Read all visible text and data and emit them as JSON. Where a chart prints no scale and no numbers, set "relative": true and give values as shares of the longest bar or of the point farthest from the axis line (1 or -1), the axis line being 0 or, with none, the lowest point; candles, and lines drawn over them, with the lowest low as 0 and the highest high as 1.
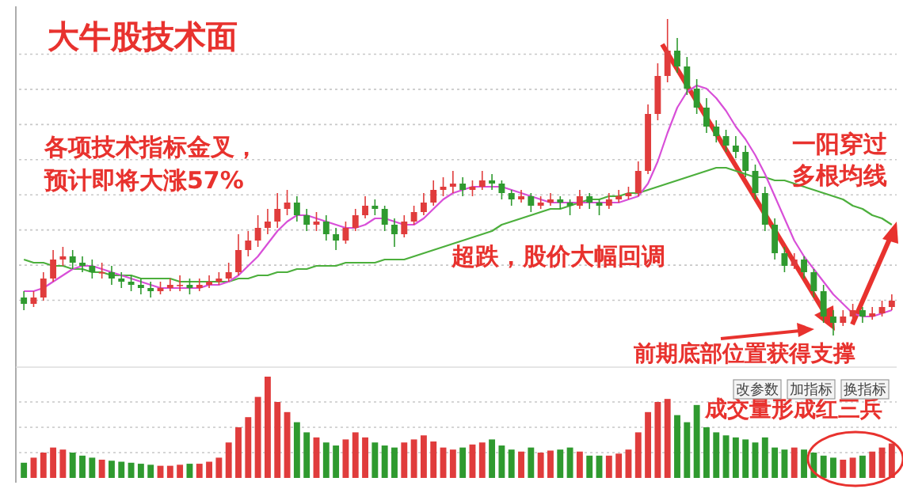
{
  "chart_data": [
    {
      "type": "candlestick",
      "title": "大牛股技术面",
      "relative": true,
      "grid": true,
      "categories": [
        null,
        null,
        null,
        null,
        null,
        null,
        null,
        null,
        null,
        null,
        null,
        null,
        null,
        null,
        null,
        null,
        null,
        null,
        null,
        null,
        null,
        null,
        null,
        null,
        null,
        null,
        null,
        null,
        null,
        null,
        null,
        null,
        null,
        null,
        null,
        null,
        null,
        null,
        null,
        null,
        null,
        null,
        null,
        null,
        null,
        null,
        null,
        null,
        null,
        null,
        null,
        null,
        null,
        null,
        null,
        null,
        null,
        null,
        null,
        null,
        null,
        null,
        null,
        null,
        null,
        null,
        null,
        null,
        null,
        null,
        null,
        null,
        null,
        null,
        null,
        null,
        null,
        null,
        null,
        null,
        null,
        null,
        null,
        null,
        null,
        null,
        null,
        null,
        null,
        null
      ],
      "ohlc": [
        [
          0.12,
          0.14,
          0.08,
          0.1
        ],
        [
          0.1,
          0.14,
          0.09,
          0.12
        ],
        [
          0.12,
          0.2,
          0.11,
          0.18
        ],
        [
          0.18,
          0.27,
          0.17,
          0.24
        ],
        [
          0.24,
          0.28,
          0.22,
          0.25
        ],
        [
          0.25,
          0.27,
          0.21,
          0.23
        ],
        [
          0.23,
          0.25,
          0.2,
          0.22
        ],
        [
          0.22,
          0.24,
          0.18,
          0.2
        ],
        [
          0.2,
          0.23,
          0.18,
          0.2
        ],
        [
          0.2,
          0.22,
          0.16,
          0.18
        ],
        [
          0.18,
          0.2,
          0.15,
          0.17
        ],
        [
          0.17,
          0.19,
          0.14,
          0.16
        ],
        [
          0.16,
          0.18,
          0.13,
          0.15
        ],
        [
          0.15,
          0.17,
          0.12,
          0.14
        ],
        [
          0.14,
          0.17,
          0.13,
          0.15
        ],
        [
          0.15,
          0.18,
          0.14,
          0.16
        ],
        [
          0.16,
          0.19,
          0.14,
          0.16
        ],
        [
          0.16,
          0.18,
          0.13,
          0.15
        ],
        [
          0.15,
          0.18,
          0.14,
          0.16
        ],
        [
          0.16,
          0.19,
          0.15,
          0.17
        ],
        [
          0.17,
          0.2,
          0.16,
          0.18
        ],
        [
          0.18,
          0.23,
          0.17,
          0.2
        ],
        [
          0.2,
          0.32,
          0.19,
          0.27
        ],
        [
          0.27,
          0.33,
          0.25,
          0.3
        ],
        [
          0.3,
          0.38,
          0.28,
          0.34
        ],
        [
          0.34,
          0.4,
          0.32,
          0.36
        ],
        [
          0.36,
          0.45,
          0.34,
          0.4
        ],
        [
          0.4,
          0.46,
          0.38,
          0.42
        ],
        [
          0.42,
          0.44,
          0.36,
          0.38
        ],
        [
          0.38,
          0.4,
          0.33,
          0.35
        ],
        [
          0.35,
          0.39,
          0.33,
          0.36
        ],
        [
          0.36,
          0.38,
          0.3,
          0.32
        ],
        [
          0.32,
          0.34,
          0.27,
          0.3
        ],
        [
          0.3,
          0.36,
          0.29,
          0.34
        ],
        [
          0.34,
          0.4,
          0.33,
          0.38
        ],
        [
          0.38,
          0.44,
          0.37,
          0.41
        ],
        [
          0.41,
          0.43,
          0.38,
          0.4
        ],
        [
          0.4,
          0.41,
          0.33,
          0.35
        ],
        [
          0.35,
          0.37,
          0.28,
          0.32
        ],
        [
          0.32,
          0.38,
          0.31,
          0.36
        ],
        [
          0.36,
          0.41,
          0.35,
          0.39
        ],
        [
          0.39,
          0.45,
          0.38,
          0.42
        ],
        [
          0.42,
          0.49,
          0.41,
          0.46
        ],
        [
          0.46,
          0.5,
          0.44,
          0.47
        ],
        [
          0.47,
          0.52,
          0.45,
          0.48
        ],
        [
          0.48,
          0.5,
          0.44,
          0.46
        ],
        [
          0.46,
          0.49,
          0.44,
          0.47
        ],
        [
          0.47,
          0.52,
          0.46,
          0.49
        ],
        [
          0.49,
          0.51,
          0.46,
          0.48
        ],
        [
          0.48,
          0.49,
          0.43,
          0.45
        ],
        [
          0.45,
          0.46,
          0.41,
          0.43
        ],
        [
          0.43,
          0.46,
          0.42,
          0.44
        ],
        [
          0.44,
          0.45,
          0.39,
          0.41
        ],
        [
          0.41,
          0.44,
          0.4,
          0.42
        ],
        [
          0.42,
          0.45,
          0.41,
          0.43
        ],
        [
          0.43,
          0.44,
          0.4,
          0.42
        ],
        [
          0.42,
          0.43,
          0.38,
          0.41
        ],
        [
          0.41,
          0.46,
          0.4,
          0.44
        ],
        [
          0.44,
          0.45,
          0.4,
          0.42
        ],
        [
          0.42,
          0.43,
          0.38,
          0.41
        ],
        [
          0.41,
          0.45,
          0.4,
          0.43
        ],
        [
          0.43,
          0.46,
          0.42,
          0.44
        ],
        [
          0.44,
          0.47,
          0.43,
          0.45
        ],
        [
          0.45,
          0.55,
          0.44,
          0.52
        ],
        [
          0.52,
          0.73,
          0.51,
          0.7
        ],
        [
          0.7,
          0.86,
          0.68,
          0.82
        ],
        [
          0.82,
          1.0,
          0.8,
          0.9
        ],
        [
          0.9,
          0.94,
          0.83,
          0.85
        ],
        [
          0.85,
          0.88,
          0.76,
          0.78
        ],
        [
          0.78,
          0.81,
          0.7,
          0.72
        ],
        [
          0.72,
          0.75,
          0.64,
          0.66
        ],
        [
          0.66,
          0.68,
          0.61,
          0.63
        ],
        [
          0.63,
          0.65,
          0.58,
          0.6
        ],
        [
          0.6,
          0.63,
          0.56,
          0.58
        ],
        [
          0.58,
          0.6,
          0.5,
          0.52
        ],
        [
          0.52,
          0.54,
          0.43,
          0.45
        ],
        [
          0.45,
          0.47,
          0.33,
          0.35
        ],
        [
          0.35,
          0.37,
          0.24,
          0.26
        ],
        [
          0.26,
          0.28,
          0.2,
          0.22
        ],
        [
          0.22,
          0.26,
          0.21,
          0.24
        ],
        [
          0.24,
          0.25,
          0.18,
          0.2
        ],
        [
          0.2,
          0.21,
          0.12,
          0.14
        ],
        [
          0.14,
          0.16,
          0.04,
          0.06
        ],
        [
          0.06,
          0.08,
          0.0,
          0.04
        ],
        [
          0.04,
          0.08,
          0.03,
          0.06
        ],
        [
          0.06,
          0.1,
          0.05,
          0.08
        ],
        [
          0.08,
          0.09,
          0.04,
          0.06
        ],
        [
          0.06,
          0.09,
          0.05,
          0.07
        ],
        [
          0.07,
          0.11,
          0.06,
          0.09
        ],
        [
          0.09,
          0.13,
          0.08,
          0.11
        ]
      ],
      "colors": [
        "#2f9a2f",
        "#e03c3c",
        "#e03c3c",
        "#e03c3c",
        "#e03c3c",
        "#2f9a2f",
        "#2f9a2f",
        "#2f9a2f",
        "#e03c3c",
        "#2f9a2f",
        "#2f9a2f",
        "#2f9a2f",
        "#2f9a2f",
        "#2f9a2f",
        "#e03c3c",
        "#e03c3c",
        "#e03c3c",
        "#2f9a2f",
        "#e03c3c",
        "#e03c3c",
        "#e03c3c",
        "#e03c3c",
        "#e03c3c",
        "#e03c3c",
        "#e03c3c",
        "#e03c3c",
        "#e03c3c",
        "#e03c3c",
        "#2f9a2f",
        "#2f9a2f",
        "#e03c3c",
        "#2f9a2f",
        "#2f9a2f",
        "#e03c3c",
        "#e03c3c",
        "#e03c3c",
        "#2f9a2f",
        "#2f9a2f",
        "#2f9a2f",
        "#e03c3c",
        "#e03c3c",
        "#e03c3c",
        "#e03c3c",
        "#e03c3c",
        "#e03c3c",
        "#2f9a2f",
        "#e03c3c",
        "#e03c3c",
        "#2f9a2f",
        "#2f9a2f",
        "#2f9a2f",
        "#e03c3c",
        "#2f9a2f",
        "#e03c3c",
        "#e03c3c",
        "#2f9a2f",
        "#2f9a2f",
        "#e03c3c",
        "#2f9a2f",
        "#2f9a2f",
        "#e03c3c",
        "#e03c3c",
        "#e03c3c",
        "#e03c3c",
        "#e03c3c",
        "#e03c3c",
        "#e03c3c",
        "#2f9a2f",
        "#2f9a2f",
        "#2f9a2f",
        "#2f9a2f",
        "#2f9a2f",
        "#2f9a2f",
        "#2f9a2f",
        "#2f9a2f",
        "#2f9a2f",
        "#2f9a2f",
        "#2f9a2f",
        "#2f9a2f",
        "#e03c3c",
        "#2f9a2f",
        "#2f9a2f",
        "#2f9a2f",
        "#2f9a2f",
        "#e03c3c",
        "#e03c3c",
        "#2f9a2f",
        "#e03c3c",
        "#e03c3c",
        "#e03c3c"
      ],
      "series": [
        {
          "type": "line",
          "color": "#4caf3c",
          "values": [
            0.24,
            0.23,
            0.23,
            0.22,
            0.22,
            0.21,
            0.21,
            0.2,
            0.2,
            0.19,
            0.19,
            0.19,
            0.18,
            0.18,
            0.18,
            0.18,
            0.17,
            0.17,
            0.17,
            0.17,
            0.17,
            0.17,
            0.18,
            0.18,
            0.19,
            0.19,
            0.2,
            0.2,
            0.21,
            0.21,
            0.22,
            0.22,
            0.22,
            0.23,
            0.23,
            0.23,
            0.23,
            0.24,
            0.24,
            0.24,
            0.25,
            0.26,
            0.27,
            0.28,
            0.29,
            0.3,
            0.31,
            0.32,
            0.33,
            0.35,
            0.36,
            0.37,
            0.38,
            0.39,
            0.4,
            0.4,
            0.41,
            0.42,
            0.43,
            0.43,
            0.44,
            0.44,
            0.45,
            0.45,
            0.46,
            0.47,
            0.48,
            0.49,
            0.5,
            0.51,
            0.52,
            0.53,
            0.53,
            0.52,
            0.51,
            0.5,
            0.5,
            0.49,
            0.49,
            0.48,
            0.47,
            0.46,
            0.45,
            0.44,
            0.43,
            0.41,
            0.4,
            0.38,
            0.37,
            0.35
          ]
        },
        {
          "type": "line",
          "color": "#d84fd8",
          "values": [
            0.14,
            0.14,
            0.15,
            0.17,
            0.19,
            0.21,
            0.22,
            0.22,
            0.21,
            0.2,
            0.19,
            0.18,
            0.17,
            0.16,
            0.15,
            0.15,
            0.15,
            0.15,
            0.15,
            0.16,
            0.16,
            0.17,
            0.19,
            0.22,
            0.25,
            0.29,
            0.33,
            0.36,
            0.38,
            0.38,
            0.37,
            0.36,
            0.35,
            0.34,
            0.34,
            0.35,
            0.37,
            0.37,
            0.36,
            0.35,
            0.35,
            0.37,
            0.4,
            0.43,
            0.45,
            0.46,
            0.47,
            0.47,
            0.47,
            0.47,
            0.46,
            0.45,
            0.44,
            0.43,
            0.42,
            0.42,
            0.42,
            0.42,
            0.42,
            0.42,
            0.42,
            0.42,
            0.43,
            0.44,
            0.48,
            0.55,
            0.64,
            0.72,
            0.77,
            0.79,
            0.78,
            0.75,
            0.71,
            0.66,
            0.62,
            0.57,
            0.51,
            0.44,
            0.37,
            0.3,
            0.25,
            0.21,
            0.17,
            0.13,
            0.1,
            0.07,
            0.06,
            0.06,
            0.07,
            0.08
          ]
        }
      ],
      "annotations": [
        "各项技术指标金叉，",
        "预计即将大涨57%",
        "超跌，股价大幅回调",
        "一阳穿过",
        "多根均线",
        "前期底部位置获得支撑"
      ]
    },
    {
      "type": "bar",
      "relative": true,
      "grid": true,
      "categories": [
        null,
        null,
        null,
        null,
        null,
        null,
        null,
        null,
        null,
        null,
        null,
        null,
        null,
        null,
        null,
        null,
        null,
        null,
        null,
        null,
        null,
        null,
        null,
        null,
        null,
        null,
        null,
        null,
        null,
        null,
        null,
        null,
        null,
        null,
        null,
        null,
        null,
        null,
        null,
        null,
        null,
        null,
        null,
        null,
        null,
        null,
        null,
        null,
        null,
        null,
        null,
        null,
        null,
        null,
        null,
        null,
        null,
        null,
        null,
        null,
        null,
        null,
        null,
        null,
        null,
        null,
        null,
        null,
        null,
        null,
        null,
        null,
        null,
        null,
        null,
        null,
        null,
        null,
        null,
        null,
        null,
        null,
        null,
        null,
        null,
        null,
        null,
        null,
        null,
        null
      ],
      "values": [
        0.15,
        0.2,
        0.25,
        0.3,
        0.28,
        0.25,
        0.22,
        0.2,
        0.18,
        0.17,
        0.16,
        0.15,
        0.14,
        0.13,
        0.12,
        0.12,
        0.13,
        0.14,
        0.14,
        0.16,
        0.2,
        0.35,
        0.5,
        0.6,
        0.8,
        1.0,
        0.75,
        0.65,
        0.55,
        0.45,
        0.4,
        0.35,
        0.32,
        0.38,
        0.45,
        0.4,
        0.35,
        0.32,
        0.3,
        0.35,
        0.38,
        0.42,
        0.36,
        0.3,
        0.28,
        0.3,
        0.33,
        0.35,
        0.38,
        0.32,
        0.28,
        0.26,
        0.3,
        0.25,
        0.27,
        0.28,
        0.3,
        0.26,
        0.22,
        0.22,
        0.22,
        0.24,
        0.28,
        0.45,
        0.65,
        0.75,
        0.78,
        0.62,
        0.55,
        0.72,
        0.5,
        0.45,
        0.42,
        0.4,
        0.38,
        0.35,
        0.4,
        0.3,
        0.28,
        0.3,
        0.28,
        0.25,
        0.22,
        0.2,
        0.18,
        0.2,
        0.22,
        0.26,
        0.3,
        0.34
      ],
      "colors": [
        "#2f9a2f",
        "#e03c3c",
        "#e03c3c",
        "#e03c3c",
        "#e03c3c",
        "#2f9a2f",
        "#2f9a2f",
        "#2f9a2f",
        "#e03c3c",
        "#2f9a2f",
        "#2f9a2f",
        "#2f9a2f",
        "#2f9a2f",
        "#2f9a2f",
        "#e03c3c",
        "#e03c3c",
        "#e03c3c",
        "#2f9a2f",
        "#e03c3c",
        "#e03c3c",
        "#e03c3c",
        "#e03c3c",
        "#e03c3c",
        "#e03c3c",
        "#e03c3c",
        "#e03c3c",
        "#e03c3c",
        "#e03c3c",
        "#2f9a2f",
        "#2f9a2f",
        "#e03c3c",
        "#2f9a2f",
        "#2f9a2f",
        "#e03c3c",
        "#e03c3c",
        "#e03c3c",
        "#2f9a2f",
        "#2f9a2f",
        "#2f9a2f",
        "#e03c3c",
        "#e03c3c",
        "#e03c3c",
        "#e03c3c",
        "#e03c3c",
        "#e03c3c",
        "#2f9a2f",
        "#e03c3c",
        "#e03c3c",
        "#2f9a2f",
        "#2f9a2f",
        "#2f9a2f",
        "#e03c3c",
        "#2f9a2f",
        "#e03c3c",
        "#e03c3c",
        "#2f9a2f",
        "#2f9a2f",
        "#e03c3c",
        "#2f9a2f",
        "#2f9a2f",
        "#e03c3c",
        "#e03c3c",
        "#e03c3c",
        "#e03c3c",
        "#e03c3c",
        "#e03c3c",
        "#e03c3c",
        "#2f9a2f",
        "#2f9a2f",
        "#2f9a2f",
        "#2f9a2f",
        "#2f9a2f",
        "#2f9a2f",
        "#2f9a2f",
        "#2f9a2f",
        "#2f9a2f",
        "#2f9a2f",
        "#2f9a2f",
        "#2f9a2f",
        "#e03c3c",
        "#2f9a2f",
        "#2f9a2f",
        "#2f9a2f",
        "#2f9a2f",
        "#e03c3c",
        "#e03c3c",
        "#2f9a2f",
        "#e03c3c",
        "#e03c3c",
        "#e03c3c"
      ],
      "annotations": [
        "成交量形成红三兵",
        "改参数",
        "加指标",
        "换指标"
      ]
    }
  ]
}
